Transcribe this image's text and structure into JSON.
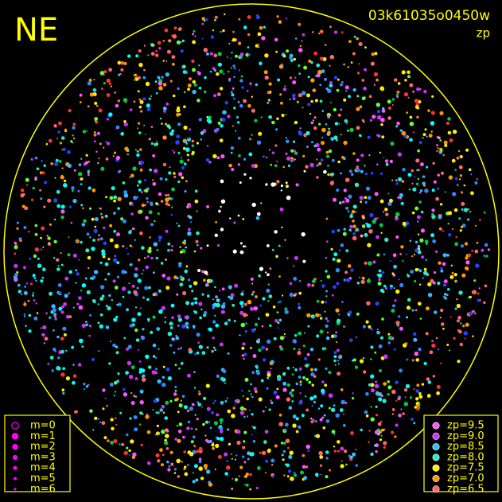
{
  "header": {
    "direction": "NE",
    "image_id": "03k61035o0450w",
    "mode": "zp"
  },
  "magnitude_legend": {
    "color": "#ff00ff",
    "items": [
      {
        "label": "m=0"
      },
      {
        "label": "m=1"
      },
      {
        "label": "m=2"
      },
      {
        "label": "m=3"
      },
      {
        "label": "m=4"
      },
      {
        "label": "m=5"
      },
      {
        "label": "m=6"
      }
    ]
  },
  "zp_legend": {
    "items": [
      {
        "label": "zp=9.5",
        "color": "#ff55ff"
      },
      {
        "label": "zp=9.0",
        "color": "#cc33ff"
      },
      {
        "label": "zp=8.5",
        "color": "#33bbff"
      },
      {
        "label": "zp=8.0",
        "color": "#22eecc"
      },
      {
        "label": "zp=7.5",
        "color": "#ffee00"
      },
      {
        "label": "zp=7.0",
        "color": "#ff9900"
      },
      {
        "label": "zp=6.5",
        "color": "#ff6666"
      }
    ]
  }
}
